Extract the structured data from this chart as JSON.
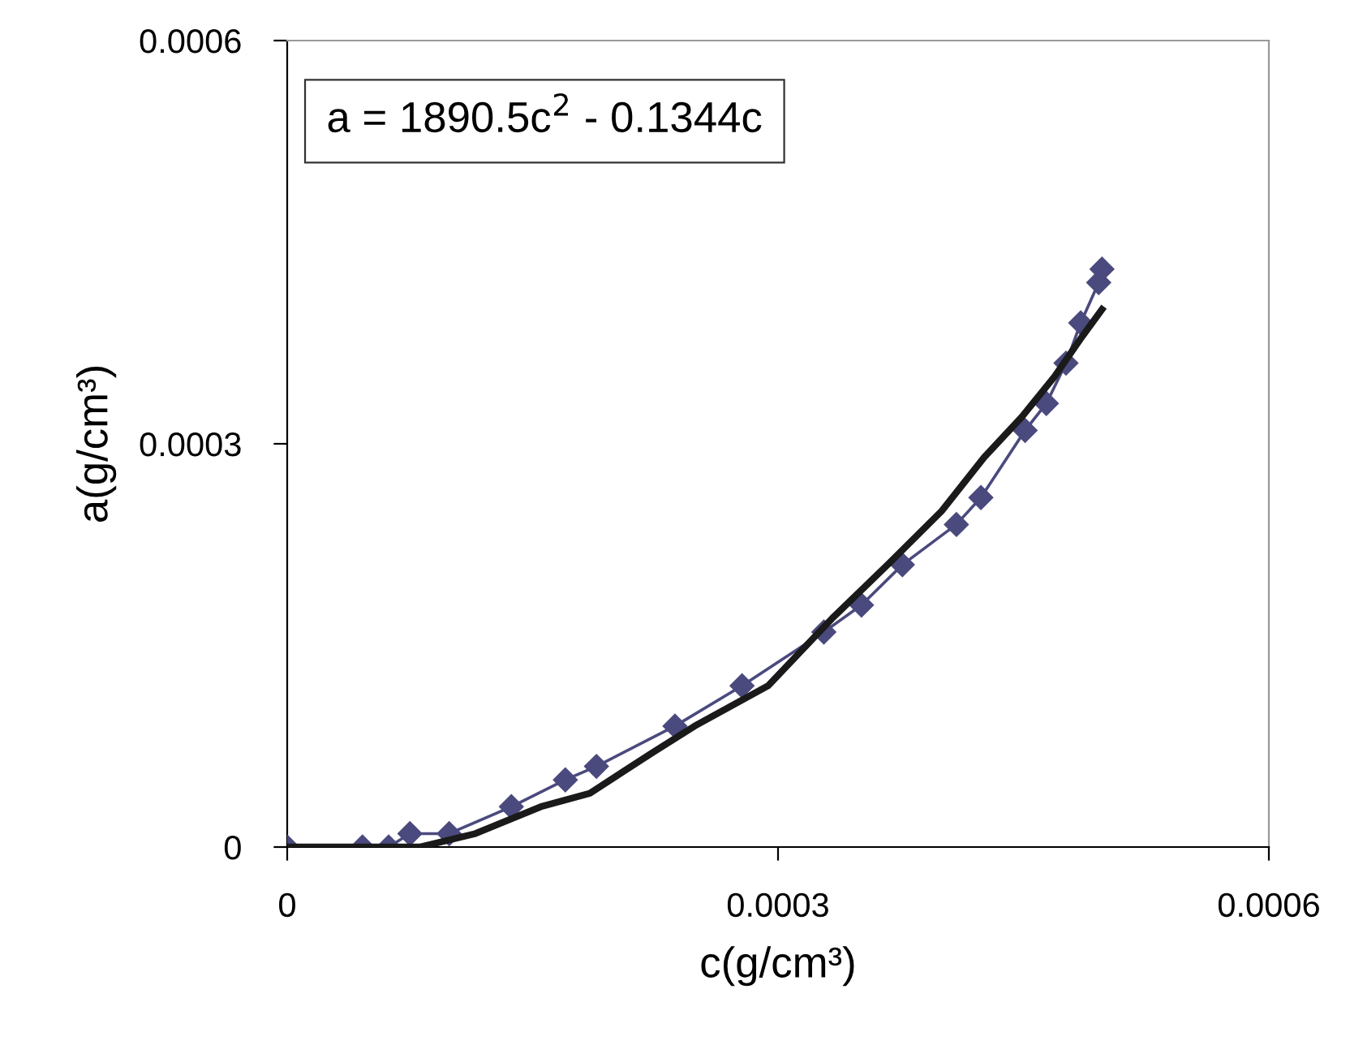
{
  "chart_data": {
    "type": "line",
    "xlabel": "c(g/cm³)",
    "ylabel": "a(g/cm³)",
    "annotations": [
      "a = 1890.5c$^{2}$ - 0.1344c"
    ],
    "xlim": [
      0,
      0.0006
    ],
    "xticks": [
      0,
      0.0003,
      0.0006
    ],
    "ylim": [
      0,
      0.0006
    ],
    "yticks": [
      0,
      0.0003,
      0.0006
    ],
    "grid": false,
    "legend": false,
    "series": [
      {
        "color": "#4b4a7e",
        "marker": "diamond",
        "x": [
          0,
          4.6e-05,
          6.2e-05,
          7.5e-05,
          9.9e-05,
          0.000137,
          0.00017,
          0.000189,
          0.000237,
          0.000278,
          0.000328,
          0.000351,
          0.000376,
          0.000409,
          0.000424,
          0.000451,
          0.000464,
          0.000476,
          0.000485,
          0.000496,
          0.000498
        ],
        "values": [
          0,
          0,
          0,
          1e-05,
          1e-05,
          3e-05,
          5e-05,
          6e-05,
          9e-05,
          0.00012,
          0.00016,
          0.00018,
          0.00021,
          0.00024,
          0.00026,
          0.00031,
          0.00033,
          0.00036,
          0.00039,
          0.00042,
          0.00043
        ]
      },
      {
        "color": "#1a1a1a",
        "marker": "none",
        "x": [
          0,
          1.4e-05,
          6e-05,
          8.1e-05,
          0.000115,
          0.000155,
          0.000185,
          0.000223,
          0.000249,
          0.000294,
          0.000333,
          0.000367,
          0.0004,
          0.000426,
          0.000449,
          0.000469,
          0.000486,
          0.000498
        ],
        "values": [
          0,
          0,
          0,
          0,
          1e-05,
          3e-05,
          4e-05,
          7e-05,
          9e-05,
          0.00012,
          0.00017,
          0.00021,
          0.00025,
          0.00029,
          0.00032,
          0.00035,
          0.00038,
          0.0004
        ]
      }
    ]
  }
}
